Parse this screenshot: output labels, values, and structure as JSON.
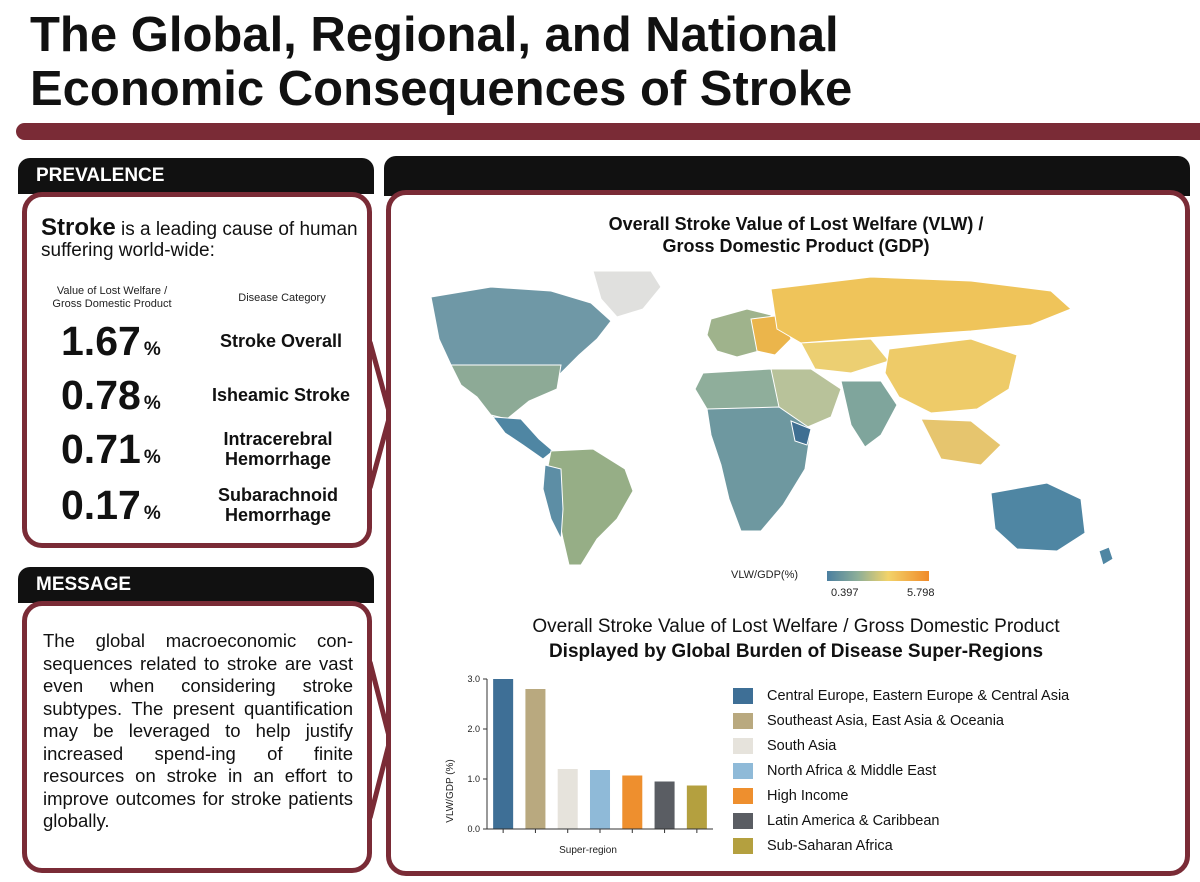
{
  "title": {
    "line1": "The Global, Regional, and National",
    "line2": "Economic Consequences of Stroke"
  },
  "prevalence": {
    "header": "PREVALENCE",
    "lead_bold": "Stroke",
    "lead_rest": " is a leading cause of human suffering world-wide:",
    "col1_line1": "Value of Lost Welfare /",
    "col1_line2": "Gross Domestic Product",
    "col2": "Disease Category",
    "stats": [
      {
        "value": "1.67",
        "unit": "%",
        "label": "Stroke Overall"
      },
      {
        "value": "0.78",
        "unit": "%",
        "label": "Isheamic Stroke"
      },
      {
        "value": "0.71",
        "unit": "%",
        "label": "Intracerebral Hemorrhage"
      },
      {
        "value": "0.17",
        "unit": "%",
        "label": "Subarachnoid Hemorrhage"
      }
    ]
  },
  "message": {
    "header": "MESSAGE",
    "text": "The global macroeconomic con-sequences related to stroke are vast even when considering stroke subtypes. The present quantification may be leveraged to help justify increased spend-ing of finite resources on stroke in an effort to improve outcomes for stroke patients globally."
  },
  "map": {
    "title_line1": "Overall Stroke Value of Lost Welfare (VLW) /",
    "title_line2": "Gross Domestic Product (GDP)",
    "scale_label": "VLW/GDP(%)",
    "scale_min": "0.397",
    "scale_max": "5.798"
  },
  "chart_titles": {
    "line1": "Overall Stroke Value of Lost Welfare / Gross Domestic Product",
    "line2": "Displayed by Global Burden of Disease Super-Regions"
  },
  "chart_data": {
    "type": "bar",
    "categories": [
      "Central Europe, Eastern Europe & Central Asia",
      "Southeast Asia, East Asia & Oceania",
      "South Asia",
      "North Africa & Middle East",
      "High Income",
      "Latin America & Caribbean",
      "Sub-Saharan Africa"
    ],
    "values": [
      3.0,
      2.8,
      1.2,
      1.18,
      1.07,
      0.95,
      0.87
    ],
    "colors": [
      "#3e6f96",
      "#b9a97f",
      "#e6e3dc",
      "#8fbad8",
      "#ee8f2e",
      "#5a5d63",
      "#b4a03f"
    ],
    "xlabel": "Super-region",
    "ylabel": "VLW/GDP (%)",
    "ylim": [
      0,
      3.0
    ],
    "yticks": [
      "0.0",
      "1.0",
      "2.0",
      "3.0"
    ],
    "legend": "right"
  }
}
